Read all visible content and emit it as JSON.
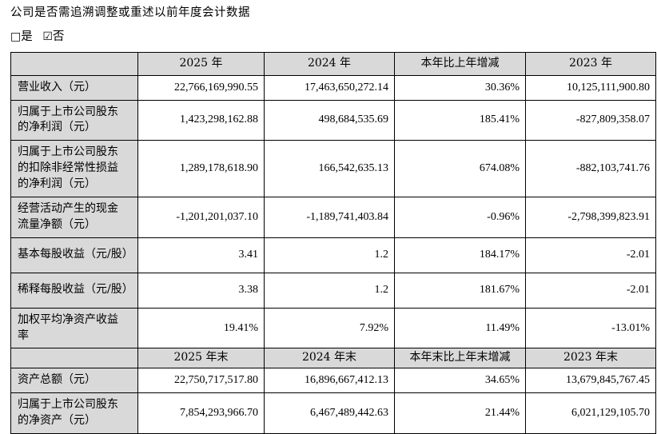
{
  "document": {
    "question": "公司是否需追溯调整或重述以前年度会计数据",
    "checkboxes": {
      "yes_glyph": "□",
      "yes_label": "是",
      "no_glyph": "☑",
      "no_label": "否"
    }
  },
  "colors": {
    "header_bg": "#d9d9d9",
    "border": "#000000",
    "text": "#000000",
    "page_bg": "#ffffff"
  },
  "table_annual": {
    "headers": {
      "corner": "",
      "y2025": "2025 年",
      "y2024": "2024 年",
      "change": "本年比上年增减",
      "y2023": "2023 年"
    },
    "rows": [
      {
        "label": "营业收入（元）",
        "values": [
          "22,766,169,990.55",
          "17,463,650,272.14",
          "30.36%",
          "10,125,111,900.80"
        ]
      },
      {
        "label": "归属于上市公司股东的净利润（元）",
        "values": [
          "1,423,298,162.88",
          "498,684,535.69",
          "185.41%",
          "-827,809,358.07"
        ]
      },
      {
        "label": "归属于上市公司股东的扣除非经常性损益的净利润（元）",
        "values": [
          "1,289,178,618.90",
          "166,542,635.13",
          "674.08%",
          "-882,103,741.76"
        ]
      },
      {
        "label": "经营活动产生的现金流量净额（元）",
        "values": [
          "-1,201,201,037.10",
          "-1,189,741,403.84",
          "-0.96%",
          "-2,798,399,823.91"
        ]
      },
      {
        "label": "基本每股收益（元/股）",
        "values": [
          "3.41",
          "1.2",
          "184.17%",
          "-2.01"
        ]
      },
      {
        "label": "稀释每股收益（元/股）",
        "values": [
          "3.38",
          "1.2",
          "181.67%",
          "-2.01"
        ]
      },
      {
        "label": "加权平均净资产收益率",
        "values": [
          "19.41%",
          "7.92%",
          "11.49%",
          "-13.01%"
        ]
      }
    ]
  },
  "table_yearend": {
    "headers": {
      "corner": "",
      "y2025": "2025 年末",
      "y2024": "2024 年末",
      "change": "本年末比上年末增减",
      "y2023": "2023 年末"
    },
    "rows": [
      {
        "label": "资产总额（元）",
        "values": [
          "22,750,717,517.80",
          "16,896,667,412.13",
          "34.65%",
          "13,679,845,767.45"
        ]
      },
      {
        "label": "归属于上市公司股东的净资产（元）",
        "values": [
          "7,854,293,966.70",
          "6,467,489,442.63",
          "21.44%",
          "6,021,129,105.70"
        ]
      }
    ]
  }
}
